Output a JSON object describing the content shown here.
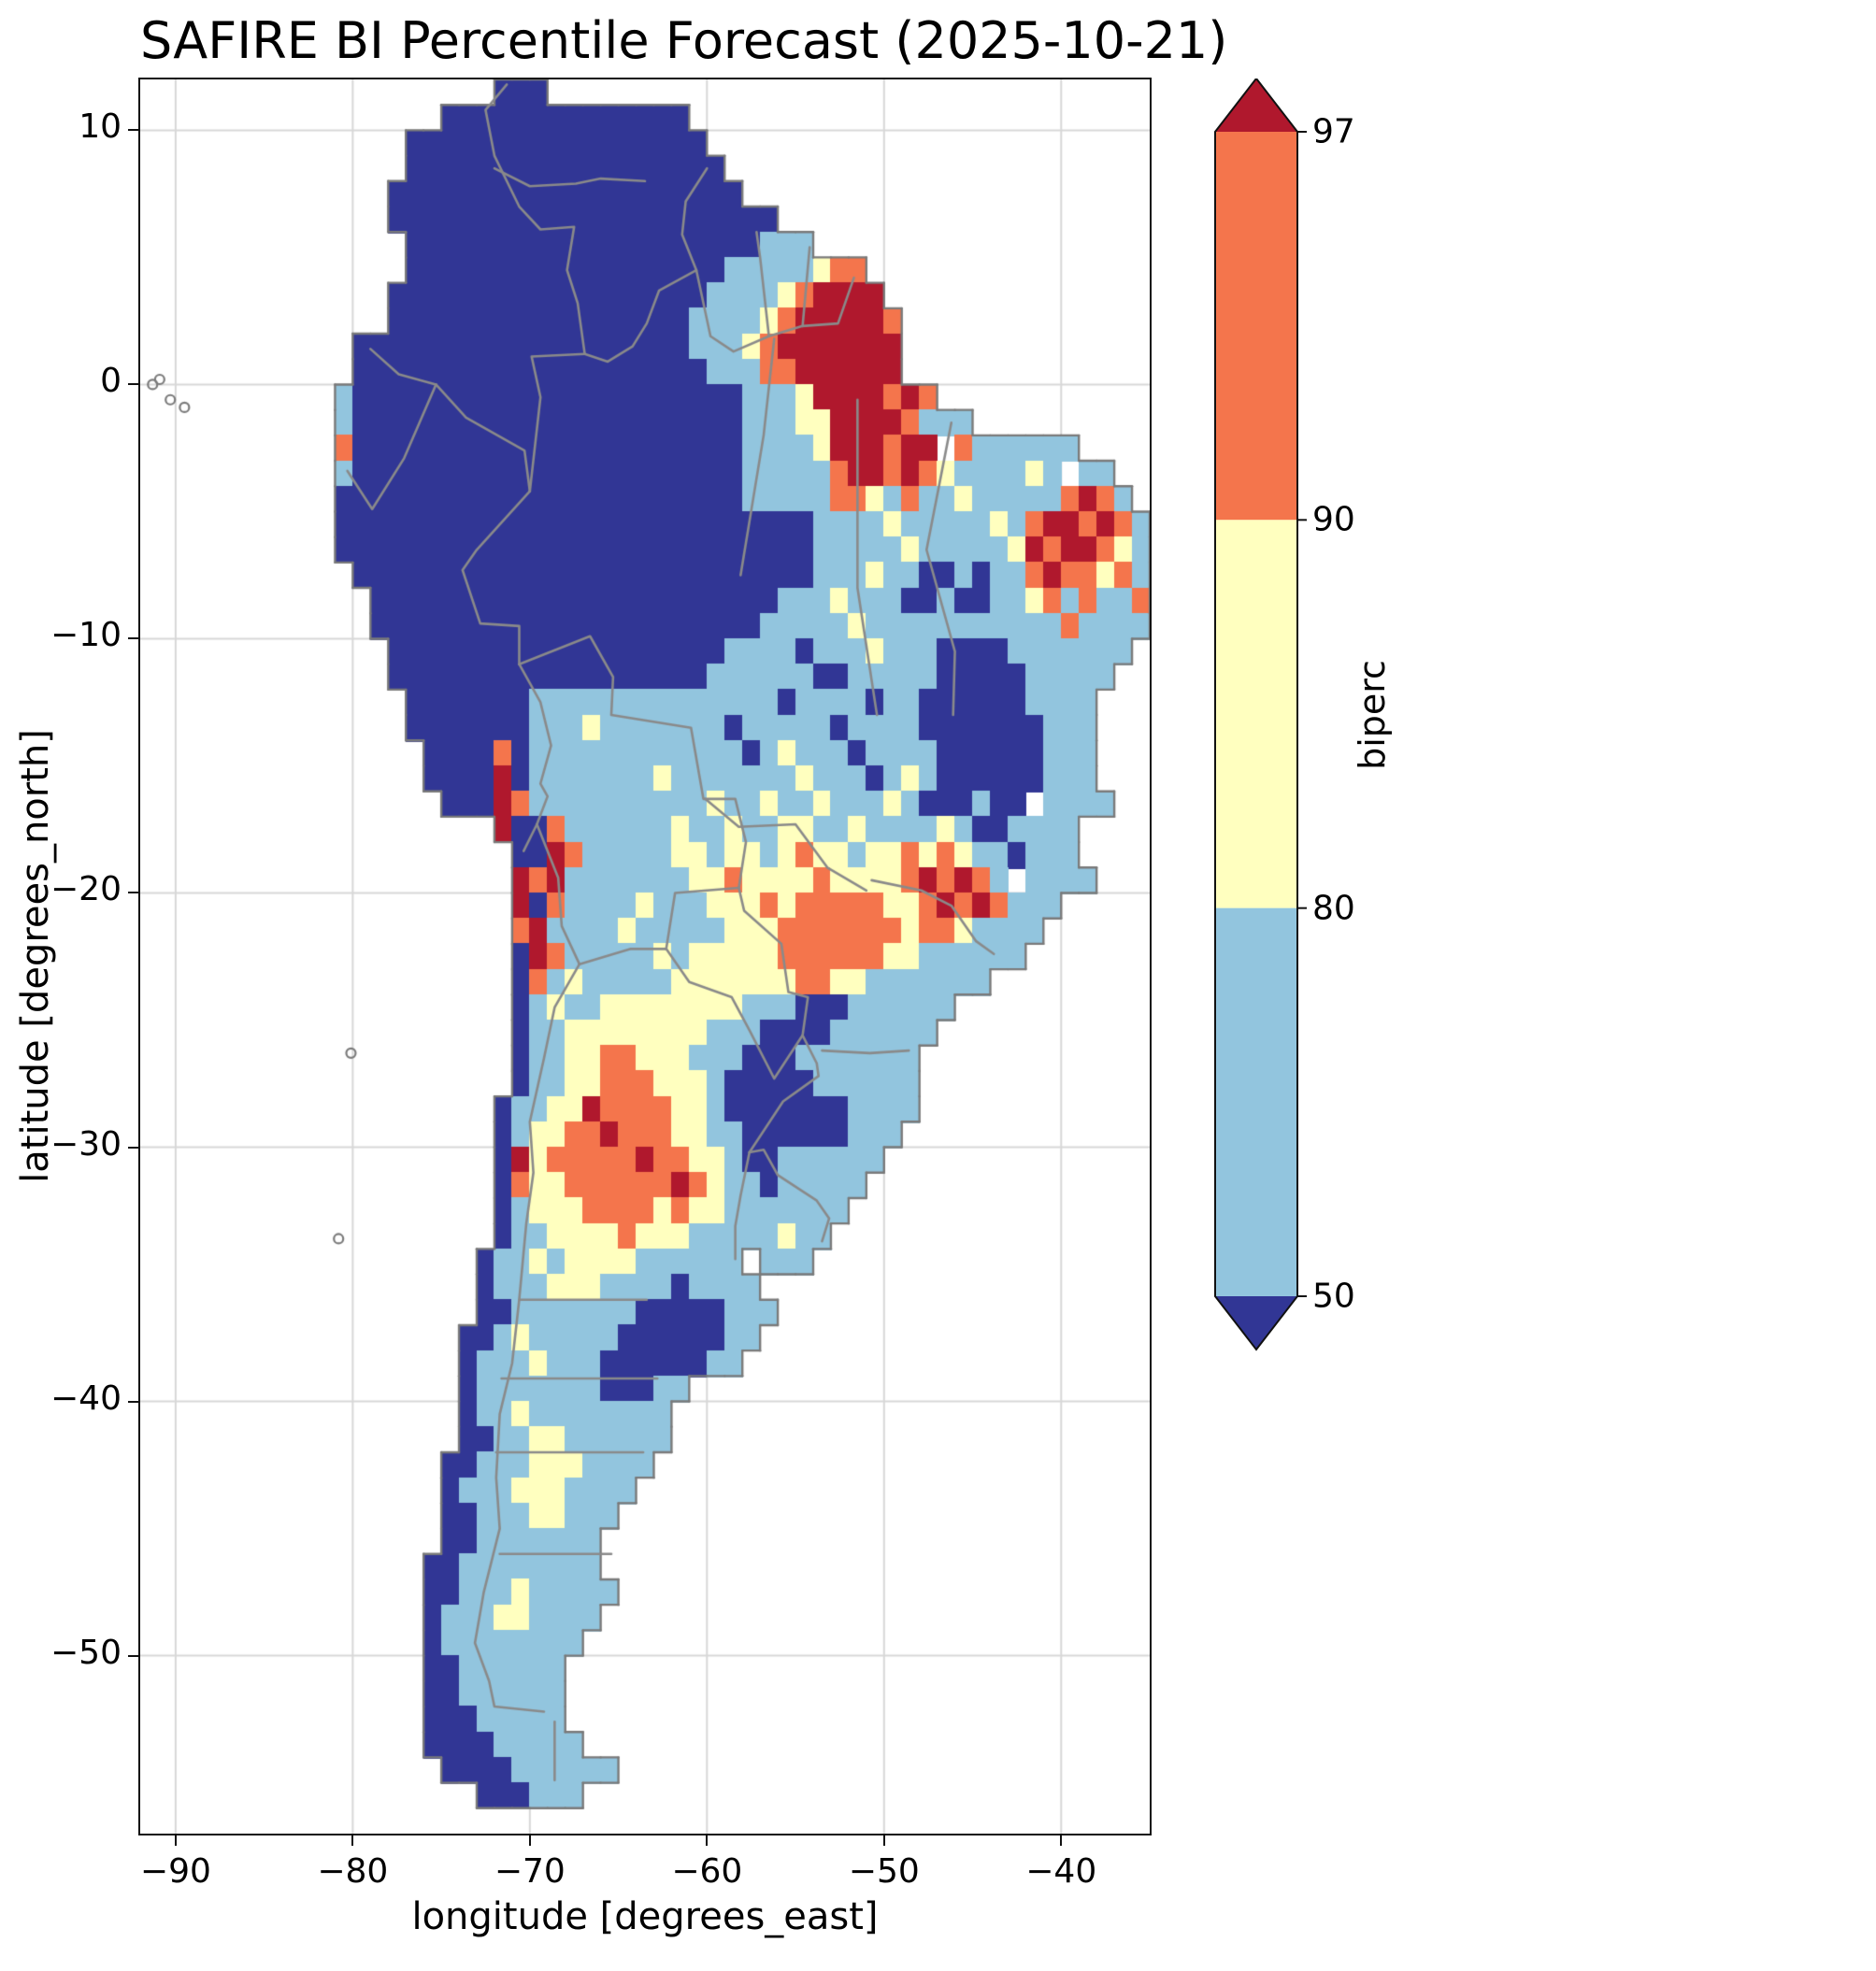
{
  "title": "SAFIRE BI Percentile Forecast (2025-10-21)",
  "axes": {
    "xlabel": "longitude [degrees_east]",
    "ylabel": "latitude [degrees_north]",
    "xticks": [
      {
        "label": "−90",
        "lon": -90
      },
      {
        "label": "−80",
        "lon": -80
      },
      {
        "label": "−70",
        "lon": -70
      },
      {
        "label": "−60",
        "lon": -60
      },
      {
        "label": "−50",
        "lon": -50
      },
      {
        "label": "−40",
        "lon": -40
      }
    ],
    "yticks": [
      {
        "label": "10",
        "lat": 10
      },
      {
        "label": "0",
        "lat": 0
      },
      {
        "label": "−10",
        "lat": -10
      },
      {
        "label": "−20",
        "lat": -20
      },
      {
        "label": "−30",
        "lat": -30
      },
      {
        "label": "−40",
        "lat": -40
      },
      {
        "label": "−50",
        "lat": -50
      }
    ],
    "gridline_color": "#d8d8d8",
    "frame_color": "#111111"
  },
  "colorbar": {
    "label": "biperc",
    "ticks": [
      "97",
      "90",
      "80",
      "50"
    ],
    "boundaries": [
      50,
      80,
      90,
      97
    ],
    "extend": "both",
    "segment_colors_bottom_to_top": [
      "#92c5de",
      "#ffffbf",
      "#f4754c"
    ],
    "under_color": "#313695",
    "over_color": "#b0182d"
  },
  "map": {
    "extent": {
      "lon_min": -92,
      "lon_max": -35,
      "lat_min": -57,
      "lat_max": 12
    },
    "palette": {
      "1": "#313695",
      "2": "#92c5de",
      "3": "#ffffbf",
      "4": "#f4754c",
      "5": "#b0182d"
    },
    "coast_color": "#7a7a7a",
    "border_color": "#8a8a8a",
    "borders": [
      [
        [
          -71.3,
          11.8
        ],
        [
          -72.5,
          10.8
        ],
        [
          -72,
          9
        ],
        [
          -70.6,
          7
        ],
        [
          -69.4,
          6.1
        ],
        [
          -67.5,
          6.2
        ],
        [
          -67.9,
          4.5
        ],
        [
          -67.3,
          3.2
        ],
        [
          -66.9,
          1.2
        ]
      ],
      [
        [
          -79,
          1.4
        ],
        [
          -77.4,
          0.4
        ],
        [
          -75.3,
          0
        ]
      ],
      [
        [
          -75.3,
          0
        ],
        [
          -73.6,
          -1.3
        ],
        [
          -70.3,
          -2.6
        ],
        [
          -70,
          -4.2
        ]
      ],
      [
        [
          -66.9,
          1.2
        ],
        [
          -69.9,
          1.1
        ],
        [
          -69.4,
          -0.5
        ],
        [
          -70,
          -4.2
        ]
      ],
      [
        [
          -70,
          -4.2
        ],
        [
          -73,
          -6.5
        ],
        [
          -73.8,
          -7.3
        ],
        [
          -72.8,
          -9.4
        ],
        [
          -70.6,
          -9.5
        ],
        [
          -70.6,
          -11
        ]
      ],
      [
        [
          -80.3,
          -3.4
        ],
        [
          -78.9,
          -4.9
        ],
        [
          -77.1,
          -2.9
        ],
        [
          -75.3,
          0
        ]
      ],
      [
        [
          -66.9,
          1.2
        ],
        [
          -65.6,
          0.9
        ],
        [
          -64.2,
          1.5
        ],
        [
          -63.4,
          2.4
        ],
        [
          -62.7,
          3.7
        ],
        [
          -60.6,
          4.5
        ]
      ],
      [
        [
          -60.6,
          4.5
        ],
        [
          -61.4,
          5.9
        ],
        [
          -61.2,
          7.2
        ],
        [
          -60,
          8.5
        ]
      ],
      [
        [
          -60.6,
          4.5
        ],
        [
          -59.8,
          1.9
        ],
        [
          -58.5,
          1.3
        ],
        [
          -56.5,
          1.9
        ]
      ],
      [
        [
          -57.2,
          6
        ],
        [
          -57,
          5
        ],
        [
          -56.5,
          1.9
        ]
      ],
      [
        [
          -54.2,
          5.4
        ],
        [
          -54.6,
          2.3
        ]
      ],
      [
        [
          -56.5,
          1.9
        ],
        [
          -54.6,
          2.3
        ],
        [
          -52.6,
          2.4
        ],
        [
          -51.7,
          4.2
        ]
      ],
      [
        [
          -70.6,
          -11
        ],
        [
          -69.4,
          -12.5
        ],
        [
          -68.8,
          -14.2
        ],
        [
          -69.4,
          -15.7
        ],
        [
          -69,
          -16.2
        ],
        [
          -69.6,
          -17.3
        ]
      ],
      [
        [
          -69.6,
          -17.3
        ],
        [
          -70.35,
          -18.35
        ]
      ],
      [
        [
          -69.6,
          -17.3
        ],
        [
          -68.4,
          -19.4
        ],
        [
          -68.2,
          -21.3
        ],
        [
          -67.2,
          -22.8
        ]
      ],
      [
        [
          -70.6,
          -11
        ],
        [
          -66.6,
          -9.9
        ],
        [
          -65.3,
          -11.5
        ],
        [
          -65.4,
          -13
        ],
        [
          -60.9,
          -13.5
        ],
        [
          -60.2,
          -16.3
        ],
        [
          -58.4,
          -16.3
        ],
        [
          -57.8,
          -18
        ],
        [
          -58.2,
          -19.8
        ]
      ],
      [
        [
          -67.2,
          -22.8
        ],
        [
          -64.3,
          -22.2
        ],
        [
          -62.3,
          -22.2
        ]
      ],
      [
        [
          -62.3,
          -22.2
        ],
        [
          -61.8,
          -20
        ],
        [
          -58.2,
          -19.8
        ]
      ],
      [
        [
          -58.2,
          -19.8
        ],
        [
          -57.9,
          -20.7
        ],
        [
          -55.8,
          -22
        ],
        [
          -55.4,
          -23.9
        ],
        [
          -54.3,
          -24.1
        ],
        [
          -54.6,
          -25.6
        ]
      ],
      [
        [
          -62.3,
          -22.2
        ],
        [
          -61,
          -23.5
        ],
        [
          -58.6,
          -24.1
        ],
        [
          -57.6,
          -25.4
        ],
        [
          -56.2,
          -27.3
        ],
        [
          -54.6,
          -25.6
        ]
      ],
      [
        [
          -54.6,
          -25.6
        ],
        [
          -53.8,
          -26.7
        ],
        [
          -53.7,
          -27.2
        ],
        [
          -55.1,
          -27.9
        ],
        [
          -55.7,
          -28.2
        ],
        [
          -57.6,
          -30.2
        ]
      ],
      [
        [
          -57.6,
          -30.2
        ],
        [
          -58.1,
          -31.9
        ],
        [
          -58.4,
          -33.1
        ],
        [
          -58.4,
          -34.4
        ]
      ],
      [
        [
          -57.6,
          -30.2
        ],
        [
          -56.8,
          -30.1
        ],
        [
          -56,
          -31.1
        ],
        [
          -53.8,
          -32.1
        ],
        [
          -53.1,
          -32.8
        ],
        [
          -53.5,
          -33.7
        ]
      ],
      [
        [
          -67.2,
          -22.8
        ],
        [
          -68.6,
          -24.5
        ],
        [
          -69.2,
          -26.5
        ],
        [
          -70,
          -29
        ],
        [
          -69.8,
          -31
        ],
        [
          -70.2,
          -33
        ],
        [
          -70.4,
          -34.5
        ],
        [
          -70.6,
          -36
        ],
        [
          -71,
          -38.5
        ],
        [
          -71.7,
          -40.5
        ],
        [
          -71.9,
          -43
        ],
        [
          -71.7,
          -45
        ],
        [
          -72.6,
          -47.5
        ],
        [
          -73.1,
          -49.5
        ],
        [
          -72.3,
          -51
        ],
        [
          -72,
          -52
        ],
        [
          -69.2,
          -52.2
        ]
      ],
      [
        [
          -68.6,
          -52.6
        ],
        [
          -68.6,
          -54.9
        ]
      ],
      [
        [
          -56.2,
          1.8
        ],
        [
          -56.8,
          -2
        ],
        [
          -58.1,
          -7.5
        ]
      ],
      [
        [
          -51.5,
          -0.6
        ],
        [
          -51.5,
          -8
        ],
        [
          -50.4,
          -13
        ]
      ],
      [
        [
          -46.2,
          -1.5
        ],
        [
          -47.6,
          -6.5
        ],
        [
          -46,
          -10.5
        ],
        [
          -46.1,
          -13
        ]
      ],
      [
        [
          -50.7,
          -19.5
        ],
        [
          -47.9,
          -19.9
        ],
        [
          -46.2,
          -20.5
        ],
        [
          -44.8,
          -21.9
        ],
        [
          -43.8,
          -22.4
        ]
      ],
      [
        [
          -60.1,
          -16.3
        ],
        [
          -58.2,
          -17.4
        ],
        [
          -55,
          -17.3
        ],
        [
          -53.2,
          -19
        ],
        [
          -51,
          -19.9
        ]
      ],
      [
        [
          -53.5,
          -26.2
        ],
        [
          -50.8,
          -26.3
        ],
        [
          -48.6,
          -26.2
        ]
      ],
      [
        [
          -70.6,
          -36
        ],
        [
          -68,
          -36
        ],
        [
          -63.4,
          -36
        ]
      ],
      [
        [
          -71.6,
          -39.1
        ],
        [
          -62.8,
          -39.1
        ]
      ],
      [
        [
          -71.9,
          -42
        ],
        [
          -63.6,
          -42
        ]
      ],
      [
        [
          -71.7,
          -46
        ],
        [
          -65.4,
          -46
        ]
      ],
      [
        [
          -72,
          8.5
        ],
        [
          -70,
          7.8
        ],
        [
          -67.4,
          7.9
        ],
        [
          -66,
          8.1
        ],
        [
          -63.5,
          8
        ]
      ]
    ],
    "islands": [
      [
        -90.9,
        0.2
      ],
      [
        -90.3,
        -0.6
      ],
      [
        -89.5,
        -0.9
      ],
      [
        -91.3,
        0.0
      ],
      [
        -80.8,
        -33.6
      ],
      [
        -80.1,
        -26.3
      ]
    ]
  },
  "chart_data": {
    "type": "heatmap",
    "title": "SAFIRE BI Percentile Forecast (2025-10-21)",
    "xlabel": "longitude [degrees_east]",
    "ylabel": "latitude [degrees_north]",
    "xlim": [
      -92,
      -35
    ],
    "ylim": [
      -57,
      12
    ],
    "xticks": [
      -90,
      -80,
      -70,
      -60,
      -50,
      -40
    ],
    "yticks": [
      10,
      0,
      -10,
      -20,
      -30,
      -40,
      -50
    ],
    "grid_on": true,
    "legend_position": "right-colorbar",
    "colorbar": {
      "label": "biperc",
      "boundaries": [
        50,
        80,
        90,
        97
      ],
      "extend": "both"
    },
    "classes": {
      ".": "ocean/no-data",
      "1": "biperc < 50",
      "2": "50-80",
      "3": "80-90",
      "4": "90-97",
      "5": "> 97"
    },
    "cell_size_deg": 1,
    "rows_north_to_south": [
      "....................111..................................",
      ".................11111111111111..........................",
      "...............11111111111111111.........................",
      "...............111111111111111111........................",
      "..............11111111111111111111.......................",
      "..............1111111111111111111111.....................",
      "...............11111111111111111111222...................",
      "...............11111111111111111122222344................",
      "..............1111111111111111112222345555...............",
      "..............11111111111111111222234555554..............",
      "............1111111111111111111222345555555..............",
      "............1111111111111111111122244555555..............",
      "...........2111111111111111111111122235555454.............",
      "...........211111111111111111111112223355554222..........",
      "...........4111111111111111111111122223555455 4222222.....",
      "...........21111111111111111111111222224554543222232 22...",
      "...........111111111111111111111112222244324223222224542.",
      "...........1111111111111111111111111112222322222324554542",
      "...........1111111111111111111111111112222232222235455432",
      "............111111111111111111111111112223221121224544342",
      ".............11111111111111111111111222322211211223424224",
      ".............11111111111111111111112222232222222222242222",
      "..............111111111111111111122221222322211112222222.",
      "..............11111111111111111122222211222221111122222..",
      "...............111111122222222222222122221221111112222...",
      "...............111111122232222222122222122221111111222...",
      "................11114122222222222212322212222111111222...",
      "................11115122222223222222232221232111111222...",
      ".................111542222222222322322322232111211 2222...",
      "....................511422222232232233223222232112222....",
      ".....................11542222233233234332334343221222....",
      ".....................5452222222334333343333454542 2222....",
      ".....................5142222322233343444443345454222.....",
      ".....................452222322222333444444434432222......",
      ".....................15422222323333344444433222222.......",
      ".....................142322222333333344332222222.........",
      ".....................1232233333333222111222222...........",
      ".....................122333333332221111222222............",
      ".....................12233443332221112222222.............",
      ".....................12233444333211111222222.............",
      "....................122335444433211111112222.............",
      "....................12334454443322111111222..............",
      "....................1534444454433211222222...............",
      "....................143344444454322122222................",
      "....................12333444434332222222.................",
      "....................1223333433322222322..................",
      "...................122323333222222.222...................",
      "...................1222333222212222......................",
      "...................11222222211111222.....................",
      "..................11232222211111122......................",
      "..................1222322211111122.......................",
      "..................1222222211122..........................",
      "..................122322222222...........................",
      "..................112233222222...........................",
      ".................112223332222............................",
      ".................12223332222.............................",
      ".................1122233222..............................",
      ".................112222222...............................",
      "................1122222222...............................",
      "................11222322222..............................",
      "................1222332222...............................",
      "................122222222................................",
      "................11222222.................................",
      "................11222222.................................",
      "................11122222.................................",
      "................111122222................................",
      ".................1111222222..............................",
      "...................111222................................",
      "........................................................."
    ]
  }
}
